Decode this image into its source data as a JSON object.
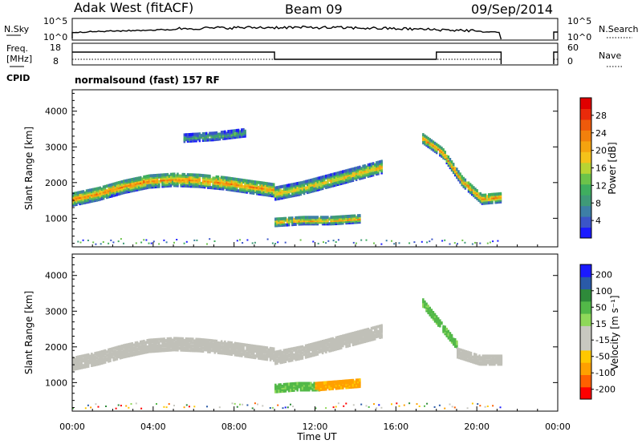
{
  "header": {
    "station": "Adak West (fitACF)",
    "beam": "Beam 09",
    "date": "09/Sep/2014"
  },
  "top_panels": {
    "nsky": {
      "label": "N.Sky",
      "tick_top": "10^5",
      "tick_bottom": "10^0",
      "right_label": "N.Search",
      "right_tick_top": "10^5",
      "right_tick_bottom": "10^0"
    },
    "freq": {
      "label_line1": "Freq.",
      "label_line2": "[MHz]",
      "tick_top": "18",
      "tick_bottom": "8",
      "right_label": "Nave",
      "right_tick_top": "60",
      "right_tick_bottom": "0"
    },
    "cpid": {
      "label": "CPID",
      "value": "normalsound (fast) 157 RF"
    }
  },
  "colors": {
    "power_scale": [
      "#1a1aff",
      "#3b55c8",
      "#3d7fa6",
      "#3f9a78",
      "#3fae5f",
      "#6cc34a",
      "#b8d433",
      "#f4c21a",
      "#f5a30f",
      "#f2800c",
      "#ef5a0b",
      "#ea2a0a",
      "#e00000"
    ],
    "velocity_scale": [
      "#ff0000",
      "#ff6000",
      "#ffa000",
      "#ffc800",
      "#c8c8c0",
      "#c8c8c0",
      "#8fd85a",
      "#52b848",
      "#2e8a3a",
      "#2a5aa8",
      "#1a1aff"
    ],
    "ground_scatter": "#c0c0b8"
  },
  "chart_data": [
    {
      "type": "heatmap",
      "name": "power",
      "ylabel": "Slant Range [km]",
      "xlim": [
        "00:00",
        "24:00"
      ],
      "ylim": [
        200,
        4600
      ],
      "yticks": [
        "1000",
        "2000",
        "3000",
        "4000"
      ],
      "colorbar": {
        "label": "Power [dB]",
        "range": [
          0,
          32
        ],
        "ticks": [
          "4",
          "8",
          "12",
          "16",
          "20",
          "24",
          "28"
        ]
      },
      "bands": [
        {
          "t_start": 0.0,
          "t_end": 10.0,
          "center_km": [
            1500,
            1650,
            1850,
            2000,
            2050,
            2020,
            1950,
            1850,
            1750
          ],
          "width_km": 350,
          "peak_db": 24
        },
        {
          "t_start": 10.0,
          "t_end": 15.3,
          "center_km": [
            1650,
            1800,
            2000,
            2200,
            2400
          ],
          "width_km": 320,
          "peak_db": 20
        },
        {
          "t_start": 10.0,
          "t_end": 14.2,
          "center_km": [
            850,
            900,
            900,
            950
          ],
          "width_km": 200,
          "peak_db": 22
        },
        {
          "t_start": 17.3,
          "t_end": 21.2,
          "center_km": [
            3200,
            2800,
            2000,
            1500,
            1550
          ],
          "width_km": 260,
          "peak_db": 24
        },
        {
          "t_start": 5.5,
          "t_end": 8.5,
          "center_km": [
            3200,
            3250,
            3350
          ],
          "width_km": 180,
          "peak_db": 10
        }
      ]
    },
    {
      "type": "heatmap",
      "name": "velocity",
      "ylabel": "Slant Range [km]",
      "xlabel": "Time UT",
      "xlim": [
        "00:00",
        "24:00"
      ],
      "ylim": [
        200,
        4600
      ],
      "yticks": [
        "1000",
        "2000",
        "3000",
        "4000"
      ],
      "xticks": [
        "00:00",
        "04:00",
        "08:00",
        "12:00",
        "16:00",
        "20:00",
        "00:00"
      ],
      "colorbar": {
        "label": "Velocity [m s⁻¹]",
        "range": [
          -250,
          250
        ],
        "ticks": [
          "200",
          "100",
          "50",
          "15",
          "-15",
          "-50",
          "-100",
          "-200"
        ]
      },
      "bands": [
        {
          "t_start": 0.0,
          "t_end": 10.0,
          "center_km": [
            1500,
            1650,
            1850,
            2000,
            2050,
            2020,
            1950,
            1850,
            1750
          ],
          "width_km": 350,
          "kind": "ground"
        },
        {
          "t_start": 10.0,
          "t_end": 15.3,
          "center_km": [
            1650,
            1800,
            2000,
            2200,
            2400
          ],
          "width_km": 320,
          "kind": "ground"
        },
        {
          "t_start": 10.0,
          "t_end": 12.2,
          "center_km": [
            800,
            850,
            850
          ],
          "width_km": 200,
          "kind": "positive"
        },
        {
          "t_start": 12.0,
          "t_end": 14.2,
          "center_km": [
            850,
            900,
            950
          ],
          "width_km": 200,
          "kind": "negative"
        },
        {
          "t_start": 17.3,
          "t_end": 19.0,
          "center_km": [
            3200,
            2600,
            2000
          ],
          "width_km": 220,
          "kind": "positive"
        },
        {
          "t_start": 19.0,
          "t_end": 21.2,
          "center_km": [
            1800,
            1600,
            1600
          ],
          "width_km": 260,
          "kind": "ground"
        }
      ]
    }
  ]
}
